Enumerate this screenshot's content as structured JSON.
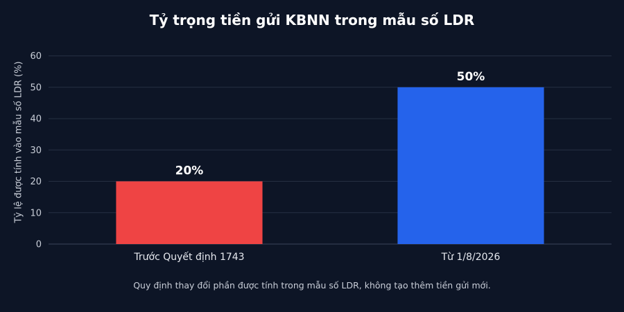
{
  "chart_data": {
    "type": "bar",
    "title": "Tỷ trọng tiền gửi KBNN trong mẫu số LDR",
    "xlabel": "",
    "ylabel": "Tỷ lệ được tính vào mẫu số LDR (%)",
    "categories": [
      "Trước Quyết định 1743",
      "Từ 1/8/2026"
    ],
    "values": [
      20,
      50
    ],
    "data_labels": [
      "20%",
      "50%"
    ],
    "colors": [
      "#ef4444",
      "#2563eb"
    ],
    "ylim": [
      0,
      65
    ],
    "yticks": [
      0,
      10,
      20,
      30,
      40,
      50,
      60
    ],
    "grid": true,
    "legend": false,
    "footnote": "Quy định thay đổi phần được tính trong mẫu số LDR, không tạo thêm tiền gửi mới."
  }
}
